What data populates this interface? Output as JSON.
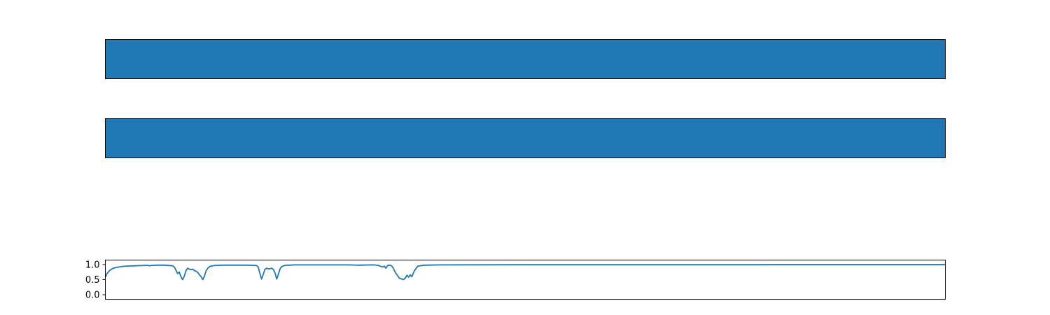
{
  "chart_data": [
    {
      "type": "heatmap",
      "title": "",
      "xlabel": "",
      "ylabel": "",
      "color": "#1f77b4",
      "grid": false,
      "axes_ticks": false
    },
    {
      "type": "heatmap",
      "title": "",
      "xlabel": "",
      "ylabel": "",
      "color": "#1f77b4",
      "grid": false,
      "axes_ticks": false
    },
    {
      "type": "line",
      "title": "",
      "xlabel": "",
      "ylabel": "",
      "xlim": [
        0,
        1000
      ],
      "ylim": [
        -0.15,
        1.15
      ],
      "yticks": [
        0.0,
        0.5,
        1.0
      ],
      "ytick_labels": [
        "0.0",
        "0.5",
        "1.0"
      ],
      "grid": false,
      "series": [
        {
          "color": "#1f77b4",
          "x": [
            0,
            2,
            5,
            8,
            12,
            18,
            25,
            35,
            45,
            50,
            52,
            55,
            60,
            70,
            80,
            82,
            84,
            86,
            88,
            90,
            92,
            94,
            96,
            98,
            100,
            102,
            104,
            106,
            108,
            110,
            112,
            114,
            116,
            118,
            120,
            122,
            124,
            126,
            130,
            140,
            150,
            155,
            160,
            170,
            180,
            182,
            184,
            186,
            188,
            190,
            192,
            194,
            196,
            198,
            200,
            202,
            204,
            206,
            208,
            210,
            212,
            214,
            216,
            218,
            220,
            225,
            235,
            260,
            290,
            300,
            320,
            325,
            330,
            332,
            334,
            336,
            338,
            340,
            342,
            345,
            350,
            355,
            357,
            359,
            361,
            363,
            365,
            368,
            372,
            380,
            400,
            500,
            630,
            640,
            650,
            652,
            654,
            656,
            658,
            660,
            662,
            664,
            666,
            668,
            680,
            700,
            780,
            800,
            1000
          ],
          "y": [
            0.58,
            0.7,
            0.8,
            0.86,
            0.9,
            0.93,
            0.95,
            0.96,
            0.97,
            0.975,
            0.96,
            0.97,
            0.98,
            0.98,
            0.96,
            0.92,
            0.82,
            0.7,
            0.75,
            0.6,
            0.5,
            0.62,
            0.8,
            0.88,
            0.85,
            0.83,
            0.85,
            0.8,
            0.78,
            0.74,
            0.66,
            0.6,
            0.5,
            0.62,
            0.8,
            0.88,
            0.93,
            0.95,
            0.97,
            0.98,
            0.98,
            0.98,
            0.98,
            0.98,
            0.97,
            0.92,
            0.7,
            0.52,
            0.68,
            0.84,
            0.88,
            0.86,
            0.86,
            0.88,
            0.84,
            0.72,
            0.52,
            0.68,
            0.86,
            0.93,
            0.96,
            0.97,
            0.98,
            0.98,
            0.98,
            0.99,
            0.99,
            0.99,
            0.99,
            0.98,
            0.99,
            0.97,
            0.92,
            0.95,
            0.88,
            0.97,
            0.98,
            0.97,
            0.92,
            0.75,
            0.55,
            0.5,
            0.55,
            0.65,
            0.58,
            0.66,
            0.6,
            0.8,
            0.95,
            0.98,
            0.99,
            0.995,
            0.995,
            0.995,
            0.995,
            0.995,
            0.995,
            0.995,
            0.995,
            0.995,
            0.995,
            0.995,
            0.995,
            0.995,
            0.995,
            0.995,
            0.995,
            0.998,
            0.998
          ]
        }
      ]
    }
  ]
}
